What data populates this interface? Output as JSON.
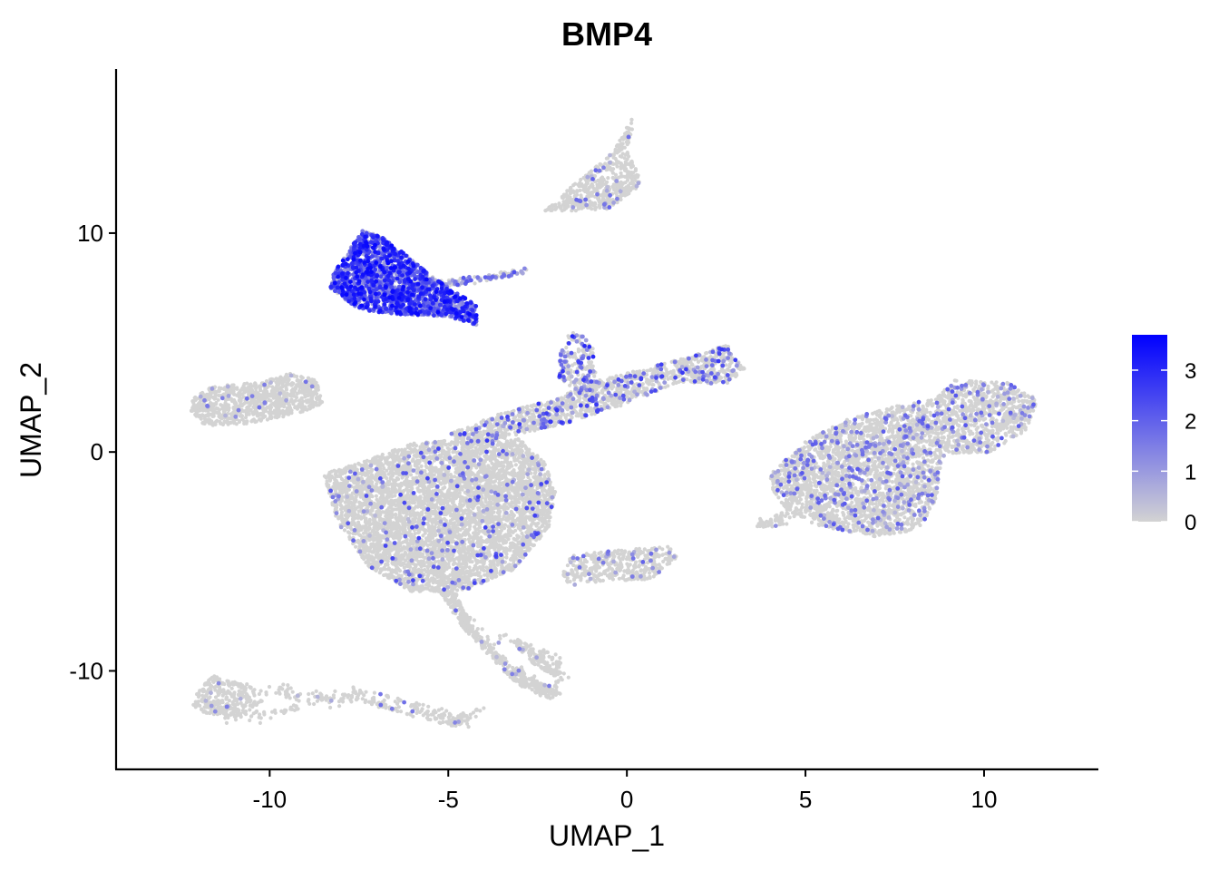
{
  "chart_data": {
    "type": "scatter",
    "title": "BMP4",
    "xlabel": "UMAP_1",
    "ylabel": "UMAP_2",
    "xlim": [
      -14.3,
      13.2
    ],
    "ylim": [
      -14.5,
      17.5
    ],
    "x_ticks": [
      -10,
      -5,
      0,
      5,
      10
    ],
    "y_ticks": [
      -10,
      0,
      10
    ],
    "grid": false,
    "point_color_low": "#d3d3d3",
    "point_color_high": "#0000ff",
    "legend": {
      "position": "right",
      "type": "colorbar",
      "min": 0,
      "max": 3.7,
      "ticks": [
        0,
        1,
        2,
        3
      ]
    },
    "clusters": [
      {
        "region": "top-triangle",
        "center": [
          0.0,
          13.0
        ],
        "expression": "low"
      },
      {
        "region": "upper-left-high",
        "center": [
          -6.0,
          7.8
        ],
        "expression": "high"
      },
      {
        "region": "left-oval",
        "center": [
          -10.2,
          2.3
        ],
        "expression": "none"
      },
      {
        "region": "central-large",
        "center": [
          -4.8,
          -2.8
        ],
        "expression": "low"
      },
      {
        "region": "central-bridge",
        "center": [
          0.5,
          2.5
        ],
        "expression": "moderate"
      },
      {
        "region": "right-cluster",
        "center": [
          8.2,
          0.0
        ],
        "expression": "low"
      },
      {
        "region": "small-lower",
        "center": [
          0.8,
          -5.2
        ],
        "expression": "low"
      },
      {
        "region": "bottom-loops",
        "center": [
          -4.5,
          -10.5
        ],
        "expression": "none"
      }
    ]
  }
}
